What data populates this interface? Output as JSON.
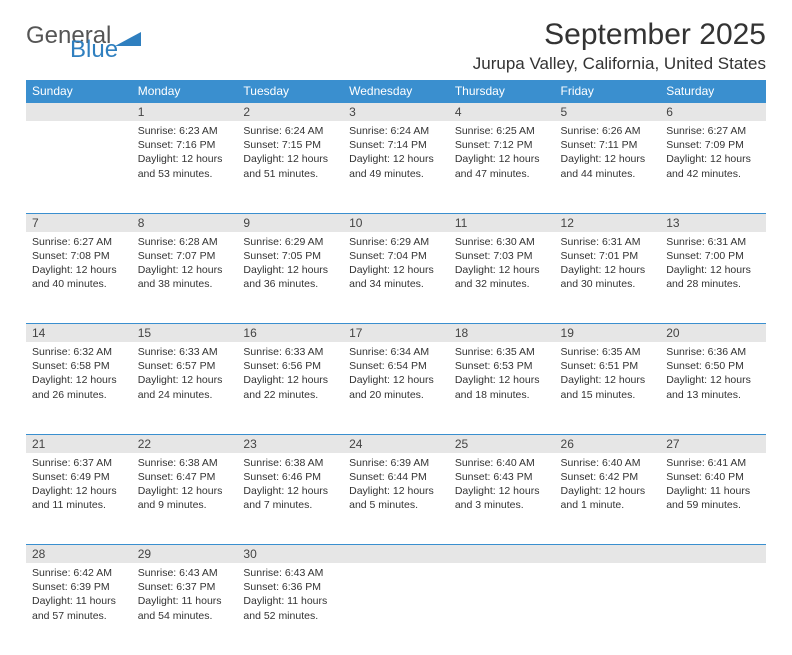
{
  "logo": {
    "text1": "General",
    "text2": "Blue"
  },
  "title": "September 2025",
  "location": "Jurupa Valley, California, United States",
  "colors": {
    "header_bg": "#3a8fcf",
    "header_text": "#ffffff",
    "daynum_bg": "#e6e6e6",
    "rule": "#3a8fcf",
    "body_text": "#333333",
    "logo_gray": "#555555",
    "logo_blue": "#2f7fbf",
    "page_bg": "#ffffff"
  },
  "typography": {
    "title_fontsize": 30,
    "location_fontsize": 17,
    "weekday_fontsize": 12,
    "daynum_fontsize": 12,
    "cell_fontsize": 10.5
  },
  "calendar": {
    "weekdays": [
      "Sunday",
      "Monday",
      "Tuesday",
      "Wednesday",
      "Thursday",
      "Friday",
      "Saturday"
    ],
    "weeks": [
      {
        "nums": [
          "",
          "1",
          "2",
          "3",
          "4",
          "5",
          "6"
        ],
        "cells": [
          [],
          [
            "Sunrise: 6:23 AM",
            "Sunset: 7:16 PM",
            "Daylight: 12 hours",
            "and 53 minutes."
          ],
          [
            "Sunrise: 6:24 AM",
            "Sunset: 7:15 PM",
            "Daylight: 12 hours",
            "and 51 minutes."
          ],
          [
            "Sunrise: 6:24 AM",
            "Sunset: 7:14 PM",
            "Daylight: 12 hours",
            "and 49 minutes."
          ],
          [
            "Sunrise: 6:25 AM",
            "Sunset: 7:12 PM",
            "Daylight: 12 hours",
            "and 47 minutes."
          ],
          [
            "Sunrise: 6:26 AM",
            "Sunset: 7:11 PM",
            "Daylight: 12 hours",
            "and 44 minutes."
          ],
          [
            "Sunrise: 6:27 AM",
            "Sunset: 7:09 PM",
            "Daylight: 12 hours",
            "and 42 minutes."
          ]
        ]
      },
      {
        "nums": [
          "7",
          "8",
          "9",
          "10",
          "11",
          "12",
          "13"
        ],
        "cells": [
          [
            "Sunrise: 6:27 AM",
            "Sunset: 7:08 PM",
            "Daylight: 12 hours",
            "and 40 minutes."
          ],
          [
            "Sunrise: 6:28 AM",
            "Sunset: 7:07 PM",
            "Daylight: 12 hours",
            "and 38 minutes."
          ],
          [
            "Sunrise: 6:29 AM",
            "Sunset: 7:05 PM",
            "Daylight: 12 hours",
            "and 36 minutes."
          ],
          [
            "Sunrise: 6:29 AM",
            "Sunset: 7:04 PM",
            "Daylight: 12 hours",
            "and 34 minutes."
          ],
          [
            "Sunrise: 6:30 AM",
            "Sunset: 7:03 PM",
            "Daylight: 12 hours",
            "and 32 minutes."
          ],
          [
            "Sunrise: 6:31 AM",
            "Sunset: 7:01 PM",
            "Daylight: 12 hours",
            "and 30 minutes."
          ],
          [
            "Sunrise: 6:31 AM",
            "Sunset: 7:00 PM",
            "Daylight: 12 hours",
            "and 28 minutes."
          ]
        ]
      },
      {
        "nums": [
          "14",
          "15",
          "16",
          "17",
          "18",
          "19",
          "20"
        ],
        "cells": [
          [
            "Sunrise: 6:32 AM",
            "Sunset: 6:58 PM",
            "Daylight: 12 hours",
            "and 26 minutes."
          ],
          [
            "Sunrise: 6:33 AM",
            "Sunset: 6:57 PM",
            "Daylight: 12 hours",
            "and 24 minutes."
          ],
          [
            "Sunrise: 6:33 AM",
            "Sunset: 6:56 PM",
            "Daylight: 12 hours",
            "and 22 minutes."
          ],
          [
            "Sunrise: 6:34 AM",
            "Sunset: 6:54 PM",
            "Daylight: 12 hours",
            "and 20 minutes."
          ],
          [
            "Sunrise: 6:35 AM",
            "Sunset: 6:53 PM",
            "Daylight: 12 hours",
            "and 18 minutes."
          ],
          [
            "Sunrise: 6:35 AM",
            "Sunset: 6:51 PM",
            "Daylight: 12 hours",
            "and 15 minutes."
          ],
          [
            "Sunrise: 6:36 AM",
            "Sunset: 6:50 PM",
            "Daylight: 12 hours",
            "and 13 minutes."
          ]
        ]
      },
      {
        "nums": [
          "21",
          "22",
          "23",
          "24",
          "25",
          "26",
          "27"
        ],
        "cells": [
          [
            "Sunrise: 6:37 AM",
            "Sunset: 6:49 PM",
            "Daylight: 12 hours",
            "and 11 minutes."
          ],
          [
            "Sunrise: 6:38 AM",
            "Sunset: 6:47 PM",
            "Daylight: 12 hours",
            "and 9 minutes."
          ],
          [
            "Sunrise: 6:38 AM",
            "Sunset: 6:46 PM",
            "Daylight: 12 hours",
            "and 7 minutes."
          ],
          [
            "Sunrise: 6:39 AM",
            "Sunset: 6:44 PM",
            "Daylight: 12 hours",
            "and 5 minutes."
          ],
          [
            "Sunrise: 6:40 AM",
            "Sunset: 6:43 PM",
            "Daylight: 12 hours",
            "and 3 minutes."
          ],
          [
            "Sunrise: 6:40 AM",
            "Sunset: 6:42 PM",
            "Daylight: 12 hours",
            "and 1 minute."
          ],
          [
            "Sunrise: 6:41 AM",
            "Sunset: 6:40 PM",
            "Daylight: 11 hours",
            "and 59 minutes."
          ]
        ]
      },
      {
        "nums": [
          "28",
          "29",
          "30",
          "",
          "",
          "",
          ""
        ],
        "cells": [
          [
            "Sunrise: 6:42 AM",
            "Sunset: 6:39 PM",
            "Daylight: 11 hours",
            "and 57 minutes."
          ],
          [
            "Sunrise: 6:43 AM",
            "Sunset: 6:37 PM",
            "Daylight: 11 hours",
            "and 54 minutes."
          ],
          [
            "Sunrise: 6:43 AM",
            "Sunset: 6:36 PM",
            "Daylight: 11 hours",
            "and 52 minutes."
          ],
          [],
          [],
          [],
          []
        ]
      }
    ]
  }
}
